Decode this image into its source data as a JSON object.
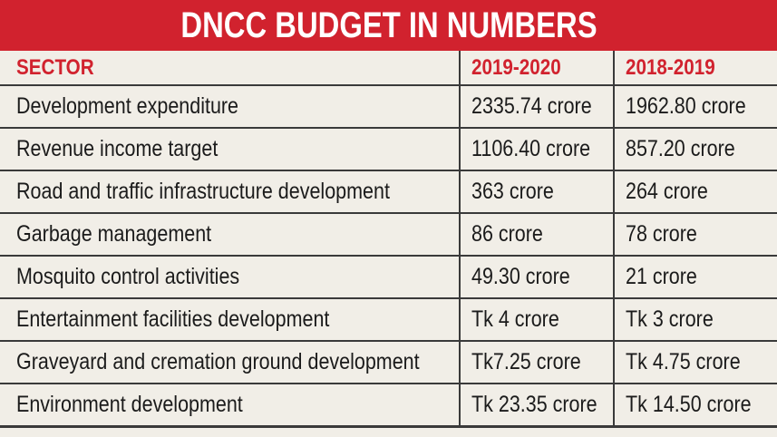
{
  "title": "DNCC BUDGET IN NUMBERS",
  "colors": {
    "title_bg": "#d1222e",
    "header_text": "#d1222e",
    "background": "#f1eee7",
    "rule": "#3a3a3a"
  },
  "chart_data": {
    "type": "table",
    "title": "DNCC BUDGET IN NUMBERS",
    "columns": [
      "SECTOR",
      "2019-2020",
      "2018-2019"
    ],
    "rows": [
      [
        "Development expenditure",
        "2335.74 crore",
        "1962.80 crore"
      ],
      [
        "Revenue income target",
        "1106.40 crore",
        "857.20 crore"
      ],
      [
        "Road and traffic infrastructure development",
        "363 crore",
        "264 crore"
      ],
      [
        "Garbage management",
        "86 crore",
        "78 crore"
      ],
      [
        "Mosquito control activities",
        "49.30 crore",
        "21 crore"
      ],
      [
        "Entertainment facilities development",
        "Tk 4 crore",
        "Tk 3 crore"
      ],
      [
        "Graveyard and cremation ground development",
        "Tk7.25 crore",
        "Tk 4.75 crore"
      ],
      [
        "Environment development",
        "Tk 23.35 crore",
        "Tk 14.50 crore"
      ]
    ]
  }
}
